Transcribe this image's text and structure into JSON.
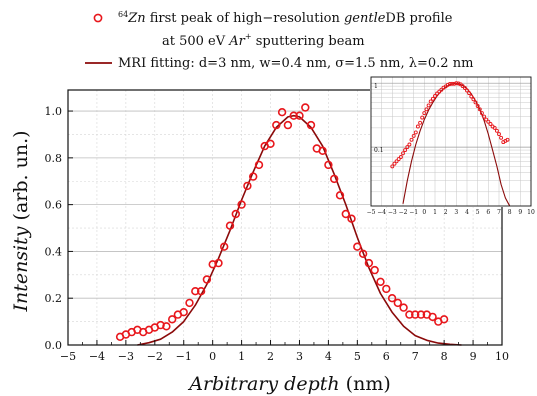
{
  "chart_data": [
    {
      "type": "scatter",
      "legend_placement": "top",
      "legend": [
        {
          "marker": "circle-open",
          "color": "#e8171c",
          "prefix": "64",
          "italic": "Zn",
          "text": " first peak of high−resolution ",
          "italic2": "gentle",
          "text2": "DB profile"
        },
        {
          "marker": "none",
          "text": "at 500 eV ",
          "italic": "Ar",
          "sup": "+",
          "text2": " sputtering beam"
        },
        {
          "marker": "line",
          "color": "#8b0a0a",
          "text": "MRI fitting: d=3 nm, w=0.4 nm, σ=1.5 nm, λ=0.2 nm"
        }
      ],
      "xlabel": {
        "italic": "Arbitrary depth",
        "unit": " (nm)"
      },
      "ylabel": {
        "italic": "Intensity",
        "unit": " (arb. un.)"
      },
      "xlim": [
        -5,
        10
      ],
      "ylim": [
        0,
        1.09
      ],
      "x_ticks": [
        -5,
        -4,
        -3,
        -2,
        -1,
        0,
        1,
        2,
        3,
        4,
        5,
        6,
        7,
        8,
        9,
        10
      ],
      "x_tick_labels": [
        "−5",
        "−4",
        "−3",
        "−2",
        "−1",
        "0",
        "1",
        "2",
        "3",
        "4",
        "5",
        "6",
        "7",
        "8",
        "9",
        "10"
      ],
      "y_ticks": [
        0,
        0.2,
        0.4,
        0.6,
        0.8,
        1.0
      ],
      "y_tick_labels": [
        "0.0",
        "0.2",
        "0.4",
        "0.6",
        "0.8",
        "1.0"
      ],
      "grid": true,
      "series": [
        {
          "kind": "scatter",
          "color": "#e8171c",
          "marker": "circle-open",
          "x": [
            -3.2,
            -3.0,
            -2.8,
            -2.6,
            -2.4,
            -2.2,
            -2.0,
            -1.8,
            -1.6,
            -1.4,
            -1.2,
            -1.0,
            -0.8,
            -0.6,
            -0.4,
            -0.2,
            0.0,
            0.2,
            0.4,
            0.6,
            0.8,
            1.0,
            1.2,
            1.4,
            1.6,
            1.8,
            2.0,
            2.2,
            2.4,
            2.6,
            2.8,
            3.0,
            3.2,
            3.4,
            3.6,
            3.8,
            4.0,
            4.2,
            4.4,
            4.6,
            4.8,
            5.0,
            5.2,
            5.4,
            5.6,
            5.8,
            6.0,
            6.2,
            6.4,
            6.6,
            6.8,
            7.0,
            7.2,
            7.4,
            7.6,
            7.8,
            8.0
          ],
          "y": [
            0.035,
            0.045,
            0.055,
            0.065,
            0.055,
            0.065,
            0.075,
            0.085,
            0.08,
            0.11,
            0.13,
            0.14,
            0.18,
            0.23,
            0.23,
            0.28,
            0.345,
            0.35,
            0.42,
            0.51,
            0.56,
            0.6,
            0.68,
            0.72,
            0.77,
            0.85,
            0.86,
            0.94,
            0.995,
            0.94,
            0.98,
            0.98,
            1.015,
            0.94,
            0.84,
            0.83,
            0.77,
            0.71,
            0.64,
            0.56,
            0.54,
            0.42,
            0.39,
            0.35,
            0.32,
            0.27,
            0.24,
            0.2,
            0.18,
            0.16,
            0.13,
            0.13,
            0.13,
            0.13,
            0.12,
            0.1,
            0.11
          ]
        },
        {
          "kind": "line",
          "color": "#8b0a0a",
          "x": [
            -2.6,
            -2.2,
            -1.8,
            -1.4,
            -1.0,
            -0.6,
            -0.2,
            0.2,
            0.6,
            1.0,
            1.4,
            1.8,
            2.2,
            2.6,
            2.8,
            3.0,
            3.4,
            3.8,
            4.2,
            4.6,
            5.0,
            5.4,
            5.8,
            6.2,
            6.6,
            7.0,
            7.4,
            7.8,
            8.2,
            8.6
          ],
          "y": [
            0.0,
            0.01,
            0.025,
            0.055,
            0.1,
            0.17,
            0.26,
            0.37,
            0.49,
            0.62,
            0.74,
            0.85,
            0.93,
            0.975,
            0.98,
            0.975,
            0.93,
            0.85,
            0.73,
            0.6,
            0.46,
            0.33,
            0.22,
            0.14,
            0.08,
            0.04,
            0.02,
            0.008,
            0.003,
            0.0
          ]
        }
      ]
    },
    {
      "type": "scatter",
      "role": "inset",
      "yscale": "log",
      "xlim": [
        -5,
        10
      ],
      "ylim": [
        0.012,
        1.25
      ],
      "x_ticks": [
        -5,
        -4,
        -3,
        -2,
        -1,
        0,
        1,
        2,
        3,
        4,
        5,
        6,
        7,
        8,
        9,
        10
      ],
      "x_tick_labels": [
        "−5",
        "−4",
        "−3",
        "−2",
        "−1",
        "0",
        "1",
        "2",
        "3",
        "4",
        "5",
        "6",
        "7",
        "8",
        "9",
        "10"
      ],
      "y_ticks": [
        0.1,
        1
      ],
      "y_tick_labels": [
        "0.1",
        "1"
      ],
      "grid": true,
      "series": [
        {
          "kind": "scatter",
          "color": "#e8171c",
          "marker": "circle-open",
          "x": [
            -3.0,
            -2.8,
            -2.6,
            -2.4,
            -2.2,
            -2.0,
            -1.8,
            -1.6,
            -1.4,
            -1.2,
            -1.0,
            -0.8,
            -0.6,
            -0.4,
            -0.2,
            0.0,
            0.2,
            0.4,
            0.6,
            0.8,
            1.0,
            1.2,
            1.4,
            1.6,
            1.8,
            2.0,
            2.2,
            2.4,
            2.6,
            2.8,
            3.0,
            3.2,
            3.4,
            3.6,
            3.8,
            4.0,
            4.2,
            4.4,
            4.6,
            4.8,
            5.0,
            5.2,
            5.4,
            5.6,
            5.8,
            6.0,
            6.2,
            6.4,
            6.6,
            6.8,
            7.0,
            7.2,
            7.4,
            7.6,
            7.8
          ],
          "y": [
            0.05,
            0.055,
            0.06,
            0.065,
            0.07,
            0.08,
            0.09,
            0.1,
            0.11,
            0.13,
            0.15,
            0.17,
            0.21,
            0.24,
            0.29,
            0.34,
            0.39,
            0.45,
            0.52,
            0.57,
            0.63,
            0.69,
            0.74,
            0.79,
            0.85,
            0.89,
            0.94,
            0.97,
            0.98,
            0.98,
            1.0,
            0.99,
            0.96,
            0.9,
            0.84,
            0.77,
            0.7,
            0.62,
            0.56,
            0.5,
            0.44,
            0.39,
            0.34,
            0.3,
            0.27,
            0.25,
            0.23,
            0.21,
            0.2,
            0.18,
            0.16,
            0.14,
            0.12,
            0.125,
            0.13
          ]
        },
        {
          "kind": "line",
          "color": "#8b0a0a",
          "x": [
            -2.0,
            -1.6,
            -1.2,
            -0.8,
            -0.4,
            0.0,
            0.4,
            0.8,
            1.2,
            1.6,
            2.0,
            2.4,
            2.8,
            3.2,
            3.6,
            4.0,
            4.4,
            4.8,
            5.2,
            5.6,
            6.0,
            6.4,
            6.8,
            7.2,
            7.6,
            8.0
          ],
          "y": [
            0.013,
            0.03,
            0.06,
            0.11,
            0.18,
            0.27,
            0.38,
            0.5,
            0.63,
            0.76,
            0.87,
            0.95,
            0.99,
            0.98,
            0.92,
            0.82,
            0.68,
            0.53,
            0.39,
            0.26,
            0.16,
            0.09,
            0.05,
            0.026,
            0.016,
            0.012
          ]
        }
      ]
    }
  ]
}
